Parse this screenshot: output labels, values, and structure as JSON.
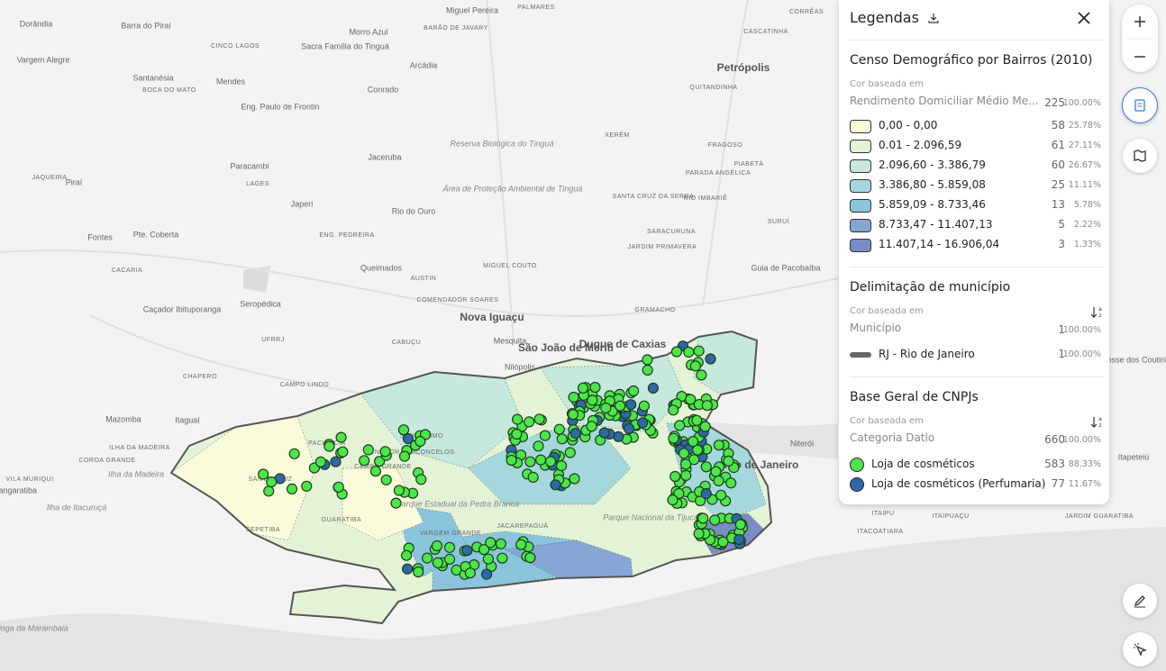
{
  "map": {
    "labels": [
      "Dorândia",
      "Barra do Piraí",
      "Miguel Pereira",
      "PALMARES",
      "Morro Azul",
      "BARÃO DE JAVARY",
      "CINCO LAGOS",
      "Sacra Família do Tinguá",
      "Arcádia",
      "Vargem Alegre",
      "Santanésia",
      "BOCA DO MATO",
      "Mendes",
      "Eng. Paulo de Frontin",
      "Conrado",
      "Petrópolis",
      "QUITANDINHA",
      "CORRÊAS",
      "CASCATINHA",
      "XERÉM",
      "FRAGOSO",
      "Reserva Biológica do Tinguá",
      "Jaceruba",
      "Paracambi",
      "LAGES",
      "JAQUEIRA",
      "Piraí",
      "Área de Proteção Ambiental de Tinguá",
      "PIABETÁ",
      "PARADA ANGÉLICA",
      "SANTA CRUZ DA SERRA",
      "RIO IMBARIÊ",
      "Japeri",
      "Rio do Ouro",
      "SURUÍ",
      "SARACURUNA",
      "JARDIM PRIMAVERA",
      "Fontes",
      "Pte. Coberta",
      "ENG. PEDREIRA",
      "CACARIA",
      "Queimados",
      "MIGUEL COUTO",
      "AUSTIN",
      "Guia de Pacobaíba",
      "COMENDADOR SOARES",
      "Nova Iguaçu",
      "Caçador Ibituporanga",
      "Seropédica",
      "GRAMACHO",
      "UFRRJ",
      "CABUÇU",
      "Mesquita",
      "São João de Meriti",
      "Duque de Caxias",
      "CAMPO LINDO",
      "CHAPERO",
      "Nilópolis",
      "Mazomba",
      "Itaguaí",
      "Niterói",
      "Rio de Janeiro",
      "ITAIPU",
      "ITAIPUAÇU",
      "ITACOATIARA",
      "PACIÊNCIA",
      "SANTÍSSIMO",
      "SENADOR VASCONCELOS",
      "CAMPO GRANDE",
      "SANTA CRUZ",
      "GUARATIBA",
      "SEPETIBA",
      "Parque Estadual da Pedra Branca",
      "VARGEM GRANDE",
      "JACAREPAGUÁ",
      "Parque Nacional da Tijuca",
      "Posse dos Coutinhos",
      "Itapeteiú",
      "JARDIM GUARATIBA",
      "ILHA DA MADEIRA",
      "COROA GRANDE",
      "Ilha da Madeira",
      "VILA MURIQUI",
      "Ilha de Itacuruçá",
      "Restinga da Marambaia",
      "Mangaratiba"
    ]
  },
  "legend": {
    "title": "Legendas",
    "layers": [
      {
        "title": "Censo Demográfico por Bairros (2010)",
        "based_on": "Cor baseada em",
        "field": "Rendimento Domiciliar Médio Me...",
        "total": 225,
        "total_pct": "100.00%",
        "swatch": "fill",
        "classes": [
          {
            "label": "0,00 - 0,00",
            "count": 58,
            "pct": "25.78%",
            "color": "#fbfbdc"
          },
          {
            "label": "0.01 - 2.096,59",
            "count": 61,
            "pct": "27.11%",
            "color": "#e4f2d6"
          },
          {
            "label": "2.096,60 - 3.386,79",
            "count": 60,
            "pct": "26.67%",
            "color": "#c7e8dc"
          },
          {
            "label": "3.386,80 - 5.859,08",
            "count": 25,
            "pct": "11.11%",
            "color": "#a5d8dc"
          },
          {
            "label": "5.859,09 - 8.733,46",
            "count": 13,
            "pct": "5.78%",
            "color": "#8ac5dd"
          },
          {
            "label": "8.733,47 - 11.407,13",
            "count": 5,
            "pct": "2.22%",
            "color": "#86a6d6"
          },
          {
            "label": "11.407,14 - 16.906,04",
            "count": 3,
            "pct": "1.33%",
            "color": "#7b8cc4"
          }
        ]
      },
      {
        "title": "Delimitação de município",
        "based_on": "Cor baseada em",
        "field": "Município",
        "total": 1,
        "total_pct": "100.00%",
        "swatch": "line",
        "classes": [
          {
            "label": "RJ - Rio de Janeiro",
            "count": 1,
            "pct": "100.00%",
            "color": "#666666"
          }
        ]
      },
      {
        "title": "Base Geral de CNPJs",
        "based_on": "Cor baseada em",
        "field": "Categoria Datlo",
        "total": 660,
        "total_pct": "100.00%",
        "swatch": "circle",
        "classes": [
          {
            "label": "Loja de cosméticos",
            "count": 583,
            "pct": "88.33%",
            "color": "#4de64a"
          },
          {
            "label": "Loja de cosméticos (Perfumaria)",
            "count": 77,
            "pct": "11.67%",
            "color": "#2f68a6"
          }
        ]
      }
    ]
  }
}
